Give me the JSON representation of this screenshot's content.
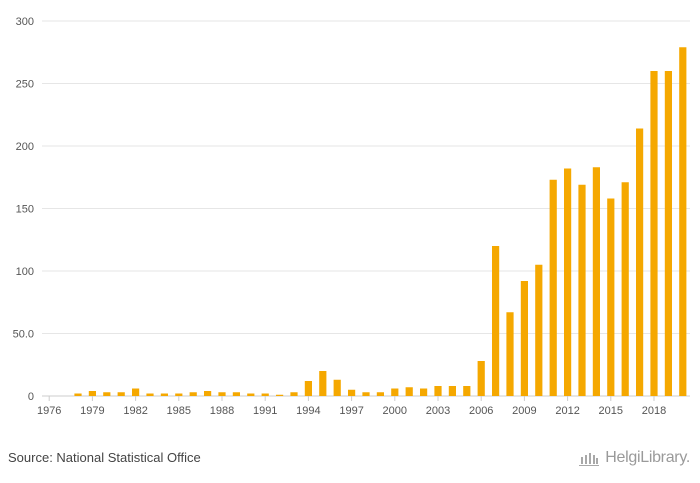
{
  "chart_data": {
    "type": "bar",
    "years": [
      1976,
      1977,
      1978,
      1979,
      1980,
      1981,
      1982,
      1983,
      1984,
      1985,
      1986,
      1987,
      1988,
      1989,
      1990,
      1991,
      1992,
      1993,
      1994,
      1995,
      1996,
      1997,
      1998,
      1999,
      2000,
      2001,
      2002,
      2003,
      2004,
      2005,
      2006,
      2007,
      2008,
      2009,
      2010,
      2011,
      2012,
      2013,
      2014,
      2015,
      2016,
      2017,
      2018,
      2019,
      2020
    ],
    "values": [
      0,
      0,
      2,
      4,
      3,
      3,
      6,
      2,
      2,
      2,
      3,
      4,
      3,
      3,
      2,
      2,
      1,
      3,
      12,
      20,
      13,
      5,
      3,
      3,
      6,
      7,
      6,
      8,
      8,
      8,
      28,
      120,
      67,
      92,
      105,
      173,
      182,
      169,
      183,
      158,
      171,
      214,
      260,
      260,
      279
    ],
    "x_tick_labels": [
      "1976",
      "1979",
      "1982",
      "1985",
      "1988",
      "1991",
      "1994",
      "1997",
      "2000",
      "2003",
      "2006",
      "2009",
      "2012",
      "2015",
      "2018"
    ],
    "y_tick_labels": [
      "0",
      "50.0",
      "100",
      "150",
      "200",
      "250",
      "300"
    ],
    "ylim": [
      0,
      300
    ],
    "grid": true,
    "bar_color": "#f5a800",
    "title": "",
    "xlabel": "",
    "ylabel": ""
  },
  "footer": {
    "source": "Source: National Statistical Office",
    "logo_text": "HelgiLibrary."
  }
}
